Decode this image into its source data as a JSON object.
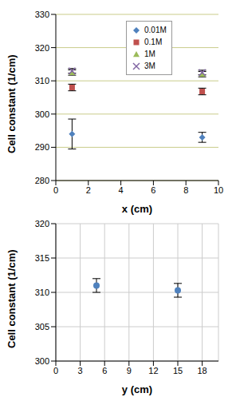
{
  "chart_data": [
    {
      "type": "scatter",
      "x_label": "x (cm)",
      "y_label": "Cell constant (1/cm)",
      "x": [
        1,
        9
      ],
      "xlim": [
        0,
        10
      ],
      "xticks": [
        0,
        2,
        4,
        6,
        8,
        10
      ],
      "ylim": [
        280,
        330
      ],
      "yticks": [
        280,
        290,
        300,
        310,
        320,
        330
      ],
      "grid": "y",
      "legend": "top",
      "series": [
        {
          "name": "0.01M",
          "color": "#4f81bd",
          "marker": "diamond",
          "values": [
            294,
            293
          ],
          "errors": [
            4.5,
            1.5
          ]
        },
        {
          "name": "0.1M",
          "color": "#c0504d",
          "marker": "square",
          "values": [
            308,
            306.8
          ],
          "errors": [
            1,
            1
          ]
        },
        {
          "name": "1M",
          "color": "#9bbb59",
          "marker": "triangle",
          "values": [
            312.5,
            312
          ],
          "errors": [
            0.8,
            0.8
          ]
        },
        {
          "name": "3M",
          "color": "#8064a2",
          "marker": "x",
          "values": [
            313,
            312.5
          ],
          "errors": [
            0.7,
            0.7
          ]
        }
      ]
    },
    {
      "type": "scatter",
      "x_label": "y (cm)",
      "y_label": "Cell constant (1/cm)",
      "x": [
        5,
        15
      ],
      "xlim": [
        0,
        20
      ],
      "xticks": [
        0,
        3,
        6,
        9,
        12,
        15,
        18
      ],
      "ylim": [
        300,
        320
      ],
      "yticks": [
        300,
        305,
        310,
        315,
        320
      ],
      "grid": true,
      "series": [
        {
          "color": "#4f81bd",
          "marker": "circle",
          "values": [
            311,
            310.3
          ],
          "errors": [
            1,
            1
          ]
        }
      ]
    }
  ]
}
